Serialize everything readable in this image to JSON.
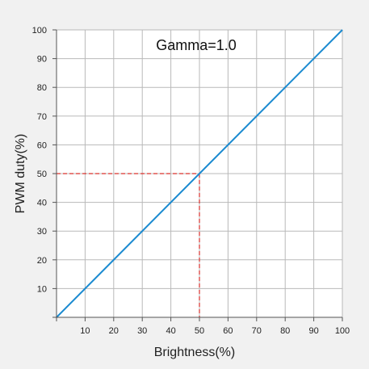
{
  "chart_data": {
    "type": "line",
    "title": "",
    "annotation": "Gamma=1.0",
    "xlabel": "Brightness(%)",
    "ylabel": "PWM duty(%)",
    "xlim": [
      0,
      100
    ],
    "ylim": [
      0,
      100
    ],
    "x_ticks": [
      10,
      20,
      30,
      40,
      50,
      60,
      70,
      80,
      90,
      100
    ],
    "y_ticks": [
      10,
      20,
      30,
      40,
      50,
      60,
      70,
      80,
      90,
      100
    ],
    "grid": true,
    "series": [
      {
        "color": "#1a8ad0",
        "x": [
          0,
          100
        ],
        "y": [
          0,
          100
        ]
      }
    ],
    "reference_point": {
      "x": 50,
      "y": 50,
      "color": "#d9302c",
      "style": "dashed"
    }
  }
}
